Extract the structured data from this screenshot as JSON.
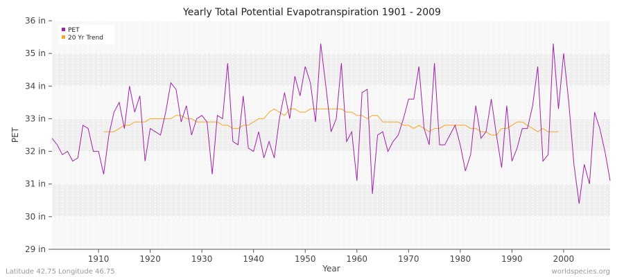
{
  "chart_data": {
    "type": "line",
    "title": "Yearly Total Potential Evapotranspiration 1901 - 2009",
    "xlabel": "Year",
    "ylabel": "PET",
    "xlim": [
      1901,
      2009
    ],
    "ylim": [
      29,
      36
    ],
    "x_ticks": [
      1910,
      1920,
      1930,
      1940,
      1950,
      1960,
      1970,
      1980,
      1990,
      2000
    ],
    "y_ticks": [
      29,
      30,
      31,
      32,
      33,
      34,
      35,
      36
    ],
    "y_tick_labels": [
      "29 in",
      "30 in",
      "31 in",
      "32 in",
      "33 in",
      "34 in",
      "35 in",
      "36 in"
    ],
    "grid": true,
    "legend_position": "top-left",
    "series": [
      {
        "name": "PET",
        "color": "#a020a8",
        "x": [
          1901,
          1902,
          1903,
          1904,
          1905,
          1906,
          1907,
          1908,
          1909,
          1910,
          1911,
          1912,
          1913,
          1914,
          1915,
          1916,
          1917,
          1918,
          1919,
          1920,
          1921,
          1922,
          1923,
          1924,
          1925,
          1926,
          1927,
          1928,
          1929,
          1930,
          1931,
          1932,
          1933,
          1934,
          1935,
          1936,
          1937,
          1938,
          1939,
          1940,
          1941,
          1942,
          1943,
          1944,
          1945,
          1946,
          1947,
          1948,
          1949,
          1950,
          1951,
          1952,
          1953,
          1954,
          1955,
          1956,
          1957,
          1958,
          1959,
          1960,
          1961,
          1962,
          1963,
          1964,
          1965,
          1966,
          1967,
          1968,
          1969,
          1970,
          1971,
          1972,
          1973,
          1974,
          1975,
          1976,
          1977,
          1978,
          1979,
          1980,
          1981,
          1982,
          1983,
          1984,
          1985,
          1986,
          1987,
          1988,
          1989,
          1990,
          1991,
          1992,
          1993,
          1994,
          1995,
          1996,
          1997,
          1998,
          1999,
          2000,
          2001,
          2002,
          2003,
          2004,
          2005,
          2006,
          2007,
          2008,
          2009
        ],
        "values": [
          32.4,
          32.2,
          31.9,
          32.0,
          31.7,
          31.8,
          32.8,
          32.7,
          32.0,
          32.0,
          31.3,
          32.5,
          33.2,
          33.5,
          32.7,
          34.0,
          33.2,
          33.7,
          31.7,
          32.7,
          32.6,
          32.5,
          33.2,
          34.1,
          33.9,
          32.9,
          33.4,
          32.5,
          33.0,
          33.1,
          32.9,
          31.3,
          33.1,
          33.0,
          34.7,
          32.3,
          32.2,
          33.7,
          32.1,
          32.0,
          32.6,
          31.8,
          32.3,
          31.8,
          33.0,
          33.8,
          33.0,
          34.3,
          33.7,
          34.6,
          34.1,
          32.9,
          35.3,
          34.0,
          32.6,
          33.0,
          34.7,
          32.3,
          32.6,
          31.1,
          33.8,
          33.9,
          30.7,
          32.5,
          32.6,
          32.0,
          32.3,
          32.5,
          33.0,
          33.6,
          33.6,
          34.6,
          32.7,
          32.2,
          34.7,
          32.2,
          32.2,
          32.5,
          32.8,
          32.2,
          31.4,
          31.9,
          33.4,
          32.4,
          32.6,
          33.6,
          32.5,
          31.5,
          33.4,
          31.7,
          32.1,
          32.7,
          32.7,
          33.4,
          34.6,
          31.7,
          31.9,
          35.3,
          33.3,
          35.0,
          33.5,
          31.6,
          30.4,
          31.6,
          31.0,
          33.2,
          32.7,
          32.0,
          31.1
        ]
      },
      {
        "name": "20 Yr Trend",
        "color": "#f5a623",
        "x": [
          1911,
          1912,
          1913,
          1914,
          1915,
          1916,
          1917,
          1918,
          1919,
          1920,
          1921,
          1922,
          1923,
          1924,
          1925,
          1926,
          1927,
          1928,
          1929,
          1930,
          1931,
          1932,
          1933,
          1934,
          1935,
          1936,
          1937,
          1938,
          1939,
          1940,
          1941,
          1942,
          1943,
          1944,
          1945,
          1946,
          1947,
          1948,
          1949,
          1950,
          1951,
          1952,
          1953,
          1954,
          1955,
          1956,
          1957,
          1958,
          1959,
          1960,
          1961,
          1962,
          1963,
          1964,
          1965,
          1966,
          1967,
          1968,
          1969,
          1970,
          1971,
          1972,
          1973,
          1974,
          1975,
          1976,
          1977,
          1978,
          1979,
          1980,
          1981,
          1982,
          1983,
          1984,
          1985,
          1986,
          1987,
          1988,
          1989,
          1990,
          1991,
          1992,
          1993,
          1994,
          1995,
          1996,
          1997,
          1998,
          1999
        ],
        "values": [
          32.6,
          32.6,
          32.6,
          32.7,
          32.8,
          32.8,
          32.9,
          32.9,
          32.9,
          33.0,
          33.0,
          33.0,
          33.0,
          33.0,
          33.1,
          33.1,
          33.0,
          33.0,
          32.9,
          32.9,
          32.9,
          32.9,
          32.9,
          32.8,
          32.8,
          32.7,
          32.7,
          32.8,
          32.8,
          32.9,
          33.0,
          33.0,
          33.2,
          33.3,
          33.2,
          33.1,
          33.3,
          33.3,
          33.2,
          33.2,
          33.3,
          33.3,
          33.3,
          33.3,
          33.3,
          33.3,
          33.3,
          33.2,
          33.2,
          33.1,
          33.1,
          33.0,
          33.1,
          33.1,
          32.9,
          32.9,
          32.9,
          32.9,
          32.8,
          32.8,
          32.7,
          32.8,
          32.7,
          32.6,
          32.7,
          32.7,
          32.8,
          32.8,
          32.8,
          32.8,
          32.8,
          32.7,
          32.7,
          32.6,
          32.6,
          32.5,
          32.5,
          32.7,
          32.7,
          32.8,
          32.9,
          32.9,
          32.8,
          32.7,
          32.6,
          32.7,
          32.6,
          32.6,
          32.6
        ]
      }
    ]
  },
  "footer": {
    "left": "Latitude 42.75 Longitude 46.75",
    "right": "worldspecies.org"
  }
}
